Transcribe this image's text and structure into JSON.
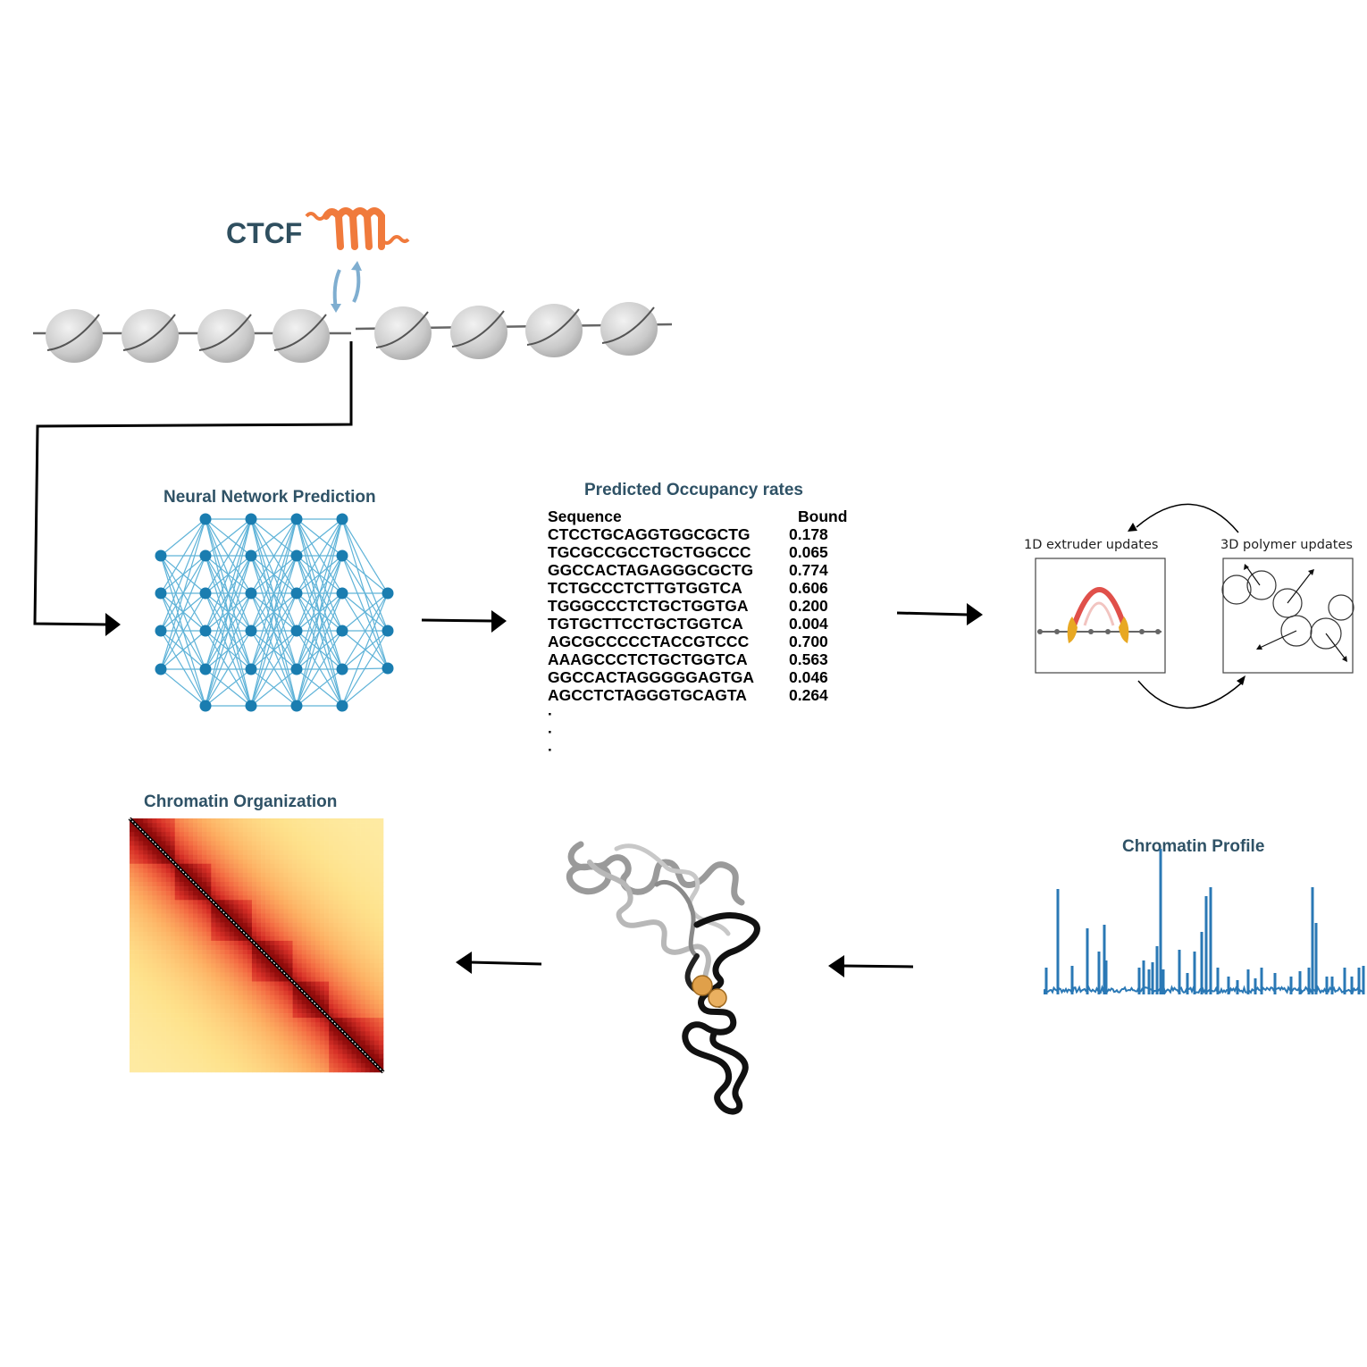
{
  "ctcf": {
    "label": "CTCF"
  },
  "neural_network": {
    "title": "Neural Network Prediction"
  },
  "occupancy": {
    "title": "Predicted Occupancy rates",
    "header": {
      "sequence": "Sequence",
      "bound": "Bound"
    },
    "rows": [
      {
        "sequence": "CTCCTGCAGGTGGCGCTG",
        "bound": "0.178"
      },
      {
        "sequence": "TGCGCCGCCTGCTGGCCC",
        "bound": "0.065"
      },
      {
        "sequence": "GGCCACTAGAGGGCGCTG",
        "bound": "0.774"
      },
      {
        "sequence": "TCTGCCCTCTTGTGGTCA",
        "bound": "0.606"
      },
      {
        "sequence": "TGGGCCCTCTGCTGGTGA",
        "bound": "0.200"
      },
      {
        "sequence": "TGTGCTTCCTGCTGGTCA",
        "bound": "0.004"
      },
      {
        "sequence": "AGCGCCCCCTACCGTCCC",
        "bound": "0.700"
      },
      {
        "sequence": "AAAGCCCTCTGCTGGTCA",
        "bound": "0.563"
      },
      {
        "sequence": "GGCCACTAGGGGGAGTGA",
        "bound": "0.046"
      },
      {
        "sequence": "AGCCTCTAGGGTGCAGTA",
        "bound": "0.264"
      }
    ],
    "ellipsis": [
      "·",
      "·",
      "·"
    ]
  },
  "simulation": {
    "extruder_title": "1D extruder updates",
    "polymer_title": "3D polymer updates"
  },
  "chromatin_organization": {
    "title": "Chromatin Organization"
  },
  "chromatin_profile": {
    "title": "Chromatin Profile"
  },
  "colors": {
    "title": "#2f5266",
    "ctcf_protein": "#f07a3c",
    "arrow_blue": "#7faed0",
    "nn_node": "#1a7db0",
    "nn_edge": "#5fb3d8",
    "profile_line": "#2a78b5",
    "extruder_arc": "#e0504a",
    "extruder_leg": "#e8a823"
  }
}
